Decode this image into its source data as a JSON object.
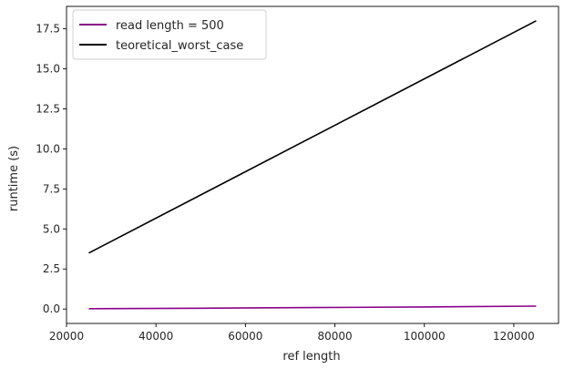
{
  "chart_data": {
    "type": "line",
    "title": "",
    "xlabel": "ref length",
    "ylabel": "runtime (s)",
    "xlim": [
      20000,
      130000
    ],
    "ylim": [
      -0.9,
      18.9
    ],
    "xticks": [
      20000,
      40000,
      60000,
      80000,
      100000,
      120000
    ],
    "xtick_labels": [
      "20000",
      "40000",
      "60000",
      "80000",
      "100000",
      "120000"
    ],
    "yticks": [
      0.0,
      2.5,
      5.0,
      7.5,
      10.0,
      12.5,
      15.0,
      17.5
    ],
    "ytick_labels": [
      "0.0",
      "2.5",
      "5.0",
      "7.5",
      "10.0",
      "12.5",
      "15.0",
      "17.5"
    ],
    "grid": false,
    "legend_position": "top-left",
    "series": [
      {
        "name": "read length = 500",
        "color": "#8b008b",
        "x": [
          25000,
          50000,
          75000,
          100000,
          125000
        ],
        "y": [
          0.02,
          0.05,
          0.09,
          0.13,
          0.18
        ]
      },
      {
        "name": "teoretical_worst_case",
        "color": "#000000",
        "x": [
          25000,
          125000
        ],
        "y": [
          3.5,
          18.0
        ]
      }
    ]
  }
}
